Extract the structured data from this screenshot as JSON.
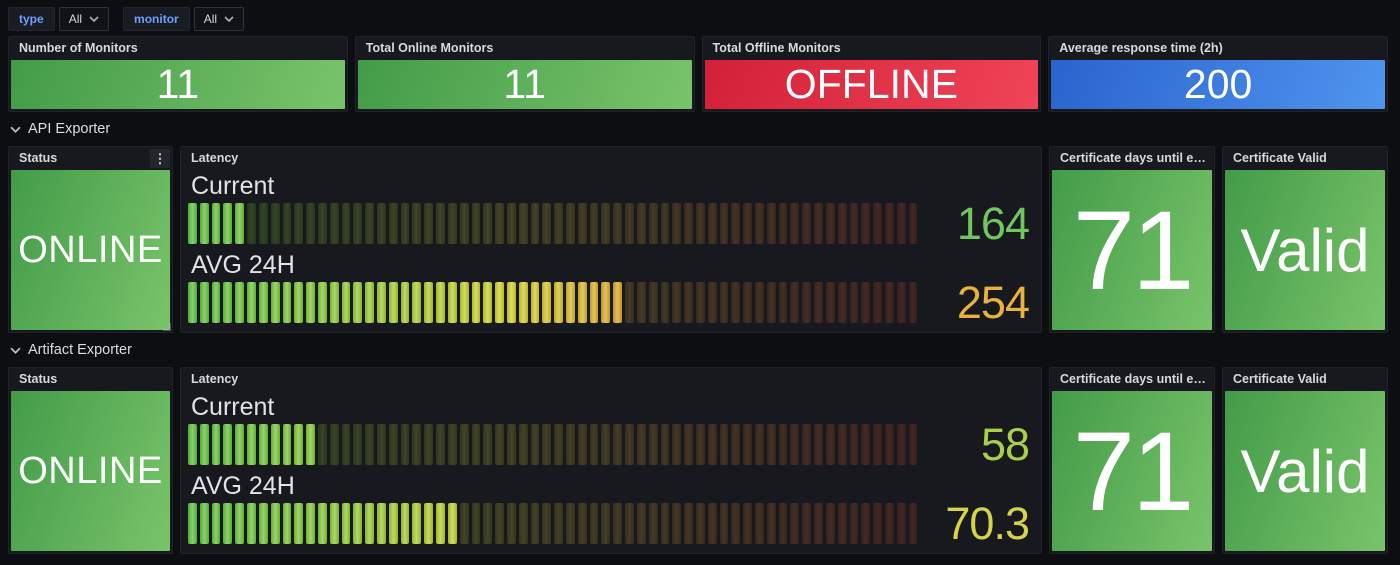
{
  "filters": {
    "items": [
      {
        "label": "type",
        "value": "All"
      },
      {
        "label": "monitor",
        "value": "All"
      }
    ]
  },
  "colors": {
    "green_start": "#439b49",
    "green_end": "#79c46a",
    "red_start": "#d22038",
    "red_end": "#f04458",
    "blue_start": "#2a63ce",
    "blue_end": "#4f95ee"
  },
  "stats": [
    {
      "title": "Number of Monitors",
      "value": "11",
      "color": "green"
    },
    {
      "title": "Total Online Monitors",
      "value": "11",
      "color": "green"
    },
    {
      "title": "Total Offline Monitors",
      "value": "OFFLINE",
      "color": "red"
    },
    {
      "title": "Average response time (2h)",
      "value": "200",
      "color": "blue"
    }
  ],
  "sections": [
    {
      "title": "API Exporter",
      "status": {
        "title": "Status",
        "value": "ONLINE"
      },
      "latency": {
        "title": "Latency",
        "gauges": [
          {
            "label": "Current",
            "value": "164",
            "value_color": "#73c55e",
            "lit_cells": 5,
            "total_cells": 62
          },
          {
            "label": "AVG 24H",
            "value": "254",
            "value_color": "#e9b13d",
            "lit_cells": 37,
            "total_cells": 62
          }
        ]
      },
      "cert_days": {
        "title": "Certificate days until expi...",
        "value": "71"
      },
      "cert_valid": {
        "title": "Certificate Valid",
        "value": "Valid"
      }
    },
    {
      "title": "Artifact Exporter",
      "status": {
        "title": "Status",
        "value": "ONLINE"
      },
      "latency": {
        "title": "Latency",
        "gauges": [
          {
            "label": "Current",
            "value": "58",
            "value_color": "#a8cf4a",
            "lit_cells": 11,
            "total_cells": 62
          },
          {
            "label": "AVG 24H",
            "value": "70.3",
            "value_color": "#d5d348",
            "lit_cells": 23,
            "total_cells": 62
          }
        ]
      },
      "cert_days": {
        "title": "Certificate days until expi...",
        "value": "71"
      },
      "cert_valid": {
        "title": "Certificate Valid",
        "value": "Valid"
      }
    }
  ]
}
